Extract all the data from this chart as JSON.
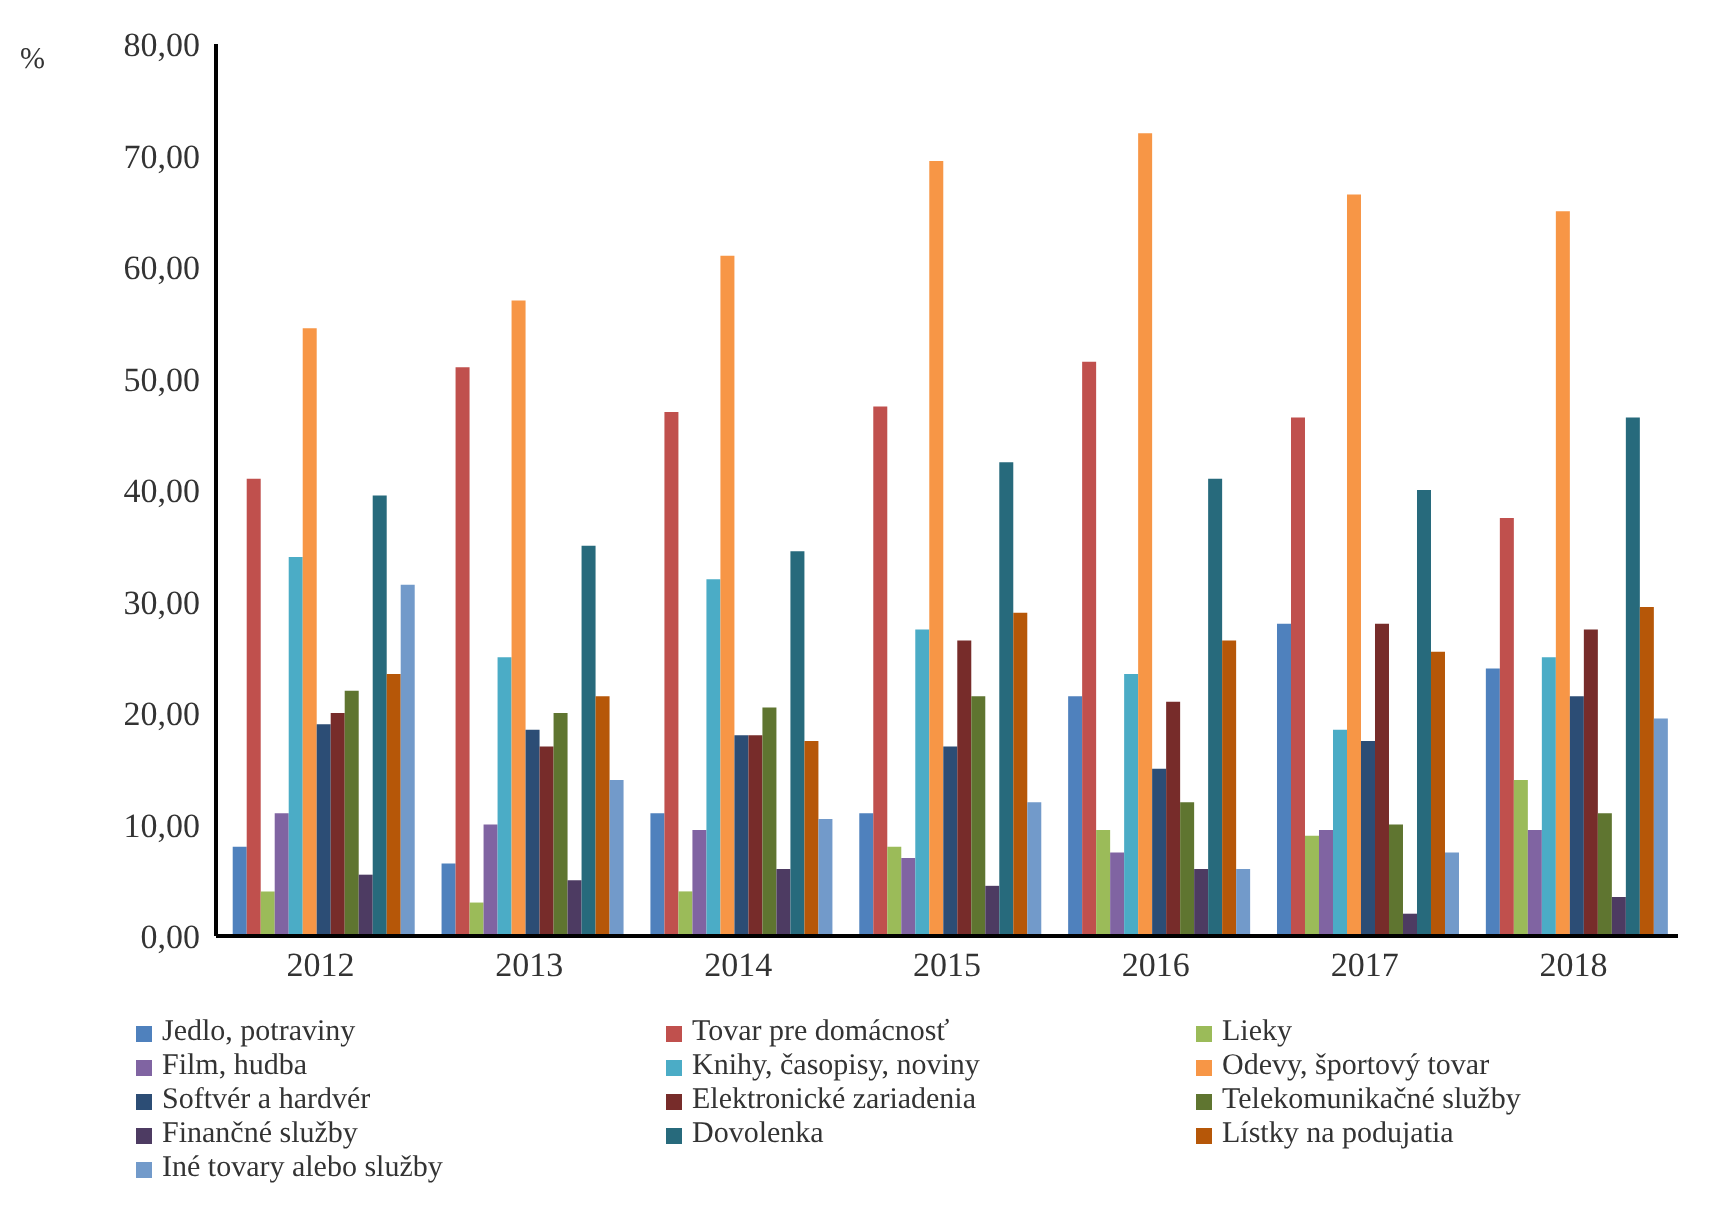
{
  "chart_data": {
    "type": "bar",
    "ylabel": "%",
    "categories": [
      "2012",
      "2013",
      "2014",
      "2015",
      "2016",
      "2017",
      "2018"
    ],
    "series": [
      {
        "name": "Jedlo, potraviny",
        "color": "#4f81bd",
        "values": [
          8,
          6.5,
          11,
          11,
          21.5,
          28,
          24
        ]
      },
      {
        "name": "Tovar pre domácnosť",
        "color": "#c0504d",
        "values": [
          41,
          51,
          47,
          47.5,
          51.5,
          46.5,
          37.5
        ]
      },
      {
        "name": "Lieky",
        "color": "#9bbb59",
        "values": [
          4,
          3,
          4,
          8,
          9.5,
          9,
          14
        ]
      },
      {
        "name": "Film, hudba",
        "color": "#8064a2",
        "values": [
          11,
          10,
          9.5,
          7,
          7.5,
          9.5,
          9.5
        ]
      },
      {
        "name": "Knihy, časopisy, noviny",
        "color": "#4bacc6",
        "values": [
          34,
          25,
          32,
          27.5,
          23.5,
          18.5,
          25
        ]
      },
      {
        "name": "Odevy, športový tovar",
        "color": "#f79646",
        "values": [
          54.5,
          57,
          61,
          69.5,
          72,
          66.5,
          65
        ]
      },
      {
        "name": "Softvér a hardvér",
        "color": "#2c4d75",
        "values": [
          19,
          18.5,
          18,
          17,
          15,
          17.5,
          21.5
        ]
      },
      {
        "name": "Elektronické zariadenia",
        "color": "#772c2a",
        "values": [
          20,
          17,
          18,
          26.5,
          21,
          28,
          27.5
        ]
      },
      {
        "name": "Telekomunikačné služby",
        "color": "#5f7530",
        "values": [
          22,
          20,
          20.5,
          21.5,
          12,
          10,
          11
        ]
      },
      {
        "name": "Finančné služby",
        "color": "#4d3b62",
        "values": [
          5.5,
          5,
          6,
          4.5,
          6,
          2,
          3.5
        ]
      },
      {
        "name": "Dovolenka",
        "color": "#276a7c",
        "values": [
          39.5,
          35,
          34.5,
          42.5,
          41,
          40,
          46.5
        ]
      },
      {
        "name": "Lístky na podujatia",
        "color": "#b65708",
        "values": [
          23.5,
          21.5,
          17.5,
          29,
          26.5,
          25.5,
          29.5
        ]
      },
      {
        "name": "Iné tovary alebo služby",
        "color": "#729aca",
        "values": [
          31.5,
          14,
          10.5,
          12,
          6,
          7.5,
          19.5
        ]
      }
    ],
    "ylim": [
      0,
      80
    ],
    "yticks": [
      {
        "value": 0,
        "label": "0,00"
      },
      {
        "value": 10,
        "label": "10,00"
      },
      {
        "value": 20,
        "label": "20,00"
      },
      {
        "value": 30,
        "label": "30,00"
      },
      {
        "value": 40,
        "label": "40,00"
      },
      {
        "value": 50,
        "label": "50,00"
      },
      {
        "value": 60,
        "label": "60,00"
      },
      {
        "value": 70,
        "label": "70,00"
      },
      {
        "value": 80,
        "label": "80,00"
      }
    ],
    "grid": false,
    "legend": "bottom"
  }
}
